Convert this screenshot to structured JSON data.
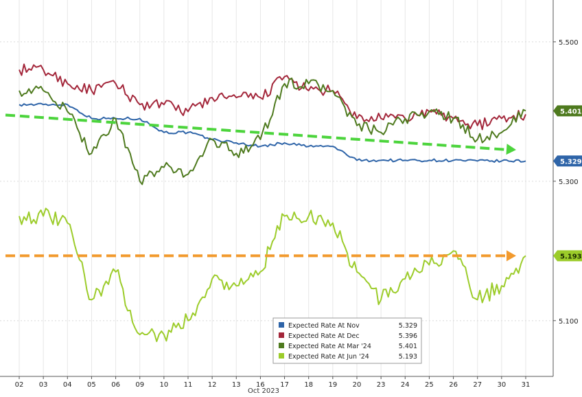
{
  "chart_data": {
    "type": "line",
    "xlabel": "Oct 2023",
    "ylim": [
      5.02,
      5.56
    ],
    "y_ticks": [
      "5.500",
      "5.300",
      "5.100"
    ],
    "y_tick_values": [
      5.5,
      5.3,
      5.1
    ],
    "x_categories": [
      "02",
      "03",
      "04",
      "05",
      "06",
      "09",
      "10",
      "11",
      "12",
      "13",
      "16",
      "17",
      "18",
      "19",
      "20",
      "23",
      "24",
      "25",
      "26",
      "27",
      "30",
      "31"
    ],
    "grid": true,
    "legend_position": "bottom-center",
    "colors": {
      "nov": "#2e64a8",
      "dec": "#a3263a",
      "mar24": "#4e7a1e",
      "jun24": "#9ccc2a",
      "trend_green": "#4cd43c",
      "trend_orange": "#f29a2e"
    },
    "series": [
      {
        "key": "nov",
        "name": "Expected Rate At Nov",
        "last": "5.329",
        "values": [
          5.41,
          5.41,
          5.41,
          5.39,
          5.39,
          5.39,
          5.37,
          5.37,
          5.36,
          5.355,
          5.35,
          5.355,
          5.35,
          5.35,
          5.33,
          5.33,
          5.33,
          5.33,
          5.33,
          5.329,
          5.329,
          5.329
        ]
      },
      {
        "key": "dec",
        "name": "Expected Rate At Dec",
        "last": "5.396",
        "values": [
          5.46,
          5.46,
          5.44,
          5.43,
          5.44,
          5.41,
          5.41,
          5.4,
          5.42,
          5.42,
          5.42,
          5.45,
          5.43,
          5.43,
          5.39,
          5.39,
          5.39,
          5.4,
          5.39,
          5.38,
          5.39,
          5.396
        ]
      },
      {
        "key": "mar24",
        "name": "Expected Rate At Mar '24",
        "last": "5.401",
        "values": [
          5.43,
          5.43,
          5.4,
          5.34,
          5.39,
          5.3,
          5.32,
          5.31,
          5.36,
          5.34,
          5.36,
          5.44,
          5.44,
          5.43,
          5.38,
          5.37,
          5.39,
          5.4,
          5.39,
          5.36,
          5.37,
          5.401
        ]
      },
      {
        "key": "jun24",
        "name": "Expected Rate At Jun '24",
        "last": "5.193",
        "values": [
          5.25,
          5.25,
          5.24,
          5.13,
          5.17,
          5.08,
          5.08,
          5.1,
          5.16,
          5.15,
          5.17,
          5.25,
          5.25,
          5.24,
          5.17,
          5.13,
          5.16,
          5.18,
          5.2,
          5.13,
          5.15,
          5.193
        ]
      }
    ],
    "legend": [
      {
        "key": "nov",
        "label": "Expected Rate At Nov",
        "value": "5.329"
      },
      {
        "key": "dec",
        "label": "Expected Rate At Dec",
        "value": "5.396"
      },
      {
        "key": "mar24",
        "label": "Expected Rate At Mar '24",
        "value": "5.401"
      },
      {
        "key": "jun24",
        "label": "Expected Rate At Jun '24",
        "value": "5.193"
      }
    ],
    "annotations": [
      {
        "type": "dashed-arrow",
        "color": "trend_green",
        "from_index": 0,
        "from_y": 5.395,
        "to_index": 21,
        "to_y": 5.345
      },
      {
        "type": "dashed-arrow",
        "color": "trend_orange",
        "from_index": 0,
        "from_y": 5.193,
        "to_index": 21,
        "to_y": 5.193
      }
    ]
  }
}
